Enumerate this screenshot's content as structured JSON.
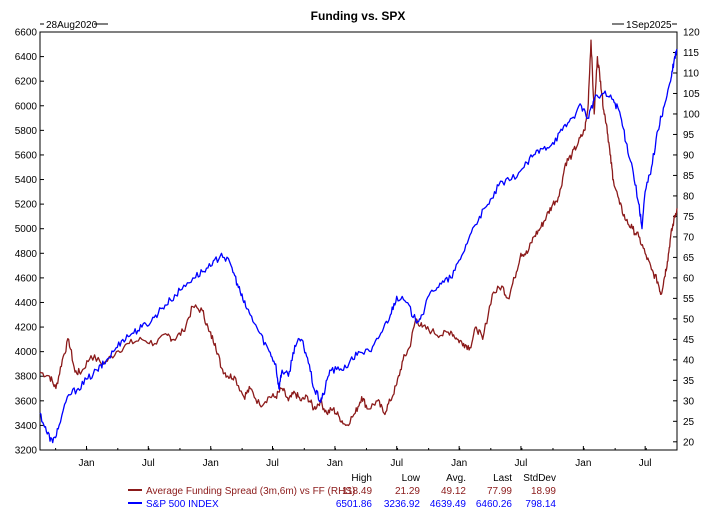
{
  "chart_data": {
    "type": "line",
    "title": "Funding vs. SPX",
    "start_date": "28Aug2020",
    "end_date": "1Sep2025",
    "x_tick_labels": [
      "Jan",
      "Jul",
      "Jan",
      "Jul",
      "Jan",
      "Jul",
      "Jan",
      "Jul",
      "Jan",
      "Jul"
    ],
    "x_tick_fracs": [
      0.073,
      0.17,
      0.268,
      0.365,
      0.463,
      0.56,
      0.658,
      0.755,
      0.853,
      0.95
    ],
    "left_axis": {
      "min": 3200,
      "max": 6600,
      "ticks": [
        "3200",
        "3400",
        "3600",
        "3800",
        "4000",
        "4200",
        "4400",
        "4600",
        "4800",
        "5000",
        "5200",
        "5400",
        "5600",
        "5800",
        "6000",
        "6200",
        "6400",
        "6600"
      ]
    },
    "right_axis": {
      "min": 18,
      "max": 120,
      "ticks": [
        "20",
        "25",
        "30",
        "35",
        "40",
        "45",
        "50",
        "55",
        "60",
        "65",
        "70",
        "75",
        "80",
        "85",
        "90",
        "95",
        "100",
        "105",
        "110",
        "115",
        "120"
      ]
    },
    "legend_headers": [
      "High",
      "Low",
      "Avg.",
      "Last",
      "StdDev"
    ],
    "series": [
      {
        "name": "Average Funding Spread (3m,6m) vs FF (RHS)",
        "axis": "right",
        "color": "#8b1a1a",
        "stats": [
          "118.49",
          "21.29",
          "49.12",
          "77.99",
          "18.99"
        ],
        "points": [
          [
            0.0,
            37
          ],
          [
            0.015,
            36
          ],
          [
            0.025,
            33
          ],
          [
            0.035,
            40
          ],
          [
            0.045,
            45
          ],
          [
            0.055,
            37
          ],
          [
            0.065,
            37
          ],
          [
            0.08,
            41
          ],
          [
            0.1,
            39
          ],
          [
            0.12,
            42
          ],
          [
            0.14,
            44
          ],
          [
            0.16,
            45
          ],
          [
            0.18,
            44
          ],
          [
            0.2,
            46
          ],
          [
            0.21,
            45
          ],
          [
            0.225,
            47
          ],
          [
            0.24,
            53
          ],
          [
            0.255,
            52
          ],
          [
            0.265,
            47
          ],
          [
            0.275,
            44
          ],
          [
            0.285,
            38
          ],
          [
            0.295,
            36
          ],
          [
            0.305,
            36
          ],
          [
            0.32,
            31
          ],
          [
            0.33,
            33
          ],
          [
            0.345,
            29
          ],
          [
            0.36,
            31
          ],
          [
            0.37,
            31
          ],
          [
            0.38,
            33
          ],
          [
            0.39,
            30
          ],
          [
            0.4,
            32
          ],
          [
            0.41,
            30
          ],
          [
            0.42,
            31
          ],
          [
            0.43,
            28
          ],
          [
            0.44,
            30
          ],
          [
            0.45,
            27
          ],
          [
            0.46,
            28
          ],
          [
            0.47,
            26
          ],
          [
            0.48,
            24
          ],
          [
            0.495,
            27
          ],
          [
            0.505,
            31
          ],
          [
            0.515,
            28
          ],
          [
            0.53,
            30
          ],
          [
            0.54,
            27
          ],
          [
            0.55,
            30
          ],
          [
            0.56,
            34
          ],
          [
            0.57,
            40
          ],
          [
            0.58,
            43
          ],
          [
            0.59,
            50
          ],
          [
            0.6,
            48
          ],
          [
            0.615,
            47
          ],
          [
            0.63,
            46
          ],
          [
            0.645,
            47
          ],
          [
            0.655,
            45
          ],
          [
            0.665,
            44
          ],
          [
            0.675,
            43
          ],
          [
            0.685,
            48
          ],
          [
            0.695,
            45
          ],
          [
            0.71,
            56
          ],
          [
            0.725,
            58
          ],
          [
            0.735,
            55
          ],
          [
            0.745,
            60
          ],
          [
            0.755,
            66
          ],
          [
            0.765,
            66
          ],
          [
            0.775,
            70
          ],
          [
            0.785,
            72
          ],
          [
            0.795,
            75
          ],
          [
            0.805,
            78
          ],
          [
            0.815,
            80
          ],
          [
            0.825,
            88
          ],
          [
            0.835,
            90
          ],
          [
            0.845,
            93
          ],
          [
            0.855,
            96
          ],
          [
            0.86,
            101
          ],
          [
            0.865,
            118
          ],
          [
            0.87,
            100
          ],
          [
            0.875,
            114
          ],
          [
            0.88,
            108
          ],
          [
            0.885,
            101
          ],
          [
            0.89,
            97
          ],
          [
            0.895,
            90
          ],
          [
            0.9,
            84
          ],
          [
            0.91,
            78
          ],
          [
            0.92,
            74
          ],
          [
            0.93,
            72
          ],
          [
            0.94,
            70
          ],
          [
            0.95,
            66
          ],
          [
            0.96,
            62
          ],
          [
            0.97,
            59
          ],
          [
            0.975,
            56
          ],
          [
            0.98,
            60
          ],
          [
            0.985,
            64
          ],
          [
            0.99,
            70
          ],
          [
            0.995,
            74
          ],
          [
            1.0,
            77
          ]
        ]
      },
      {
        "name": "S&P 500 INDEX",
        "axis": "left",
        "color": "#0000ff",
        "stats": [
          "6501.86",
          "3236.92",
          "4639.49",
          "6460.26",
          "798.14"
        ],
        "points": [
          [
            0.0,
            3500
          ],
          [
            0.01,
            3350
          ],
          [
            0.02,
            3260
          ],
          [
            0.03,
            3400
          ],
          [
            0.045,
            3650
          ],
          [
            0.06,
            3700
          ],
          [
            0.075,
            3780
          ],
          [
            0.09,
            3850
          ],
          [
            0.1,
            3900
          ],
          [
            0.115,
            4000
          ],
          [
            0.13,
            4100
          ],
          [
            0.145,
            4150
          ],
          [
            0.16,
            4200
          ],
          [
            0.175,
            4250
          ],
          [
            0.19,
            4350
          ],
          [
            0.205,
            4420
          ],
          [
            0.22,
            4500
          ],
          [
            0.24,
            4600
          ],
          [
            0.255,
            4650
          ],
          [
            0.27,
            4700
          ],
          [
            0.285,
            4800
          ],
          [
            0.3,
            4700
          ],
          [
            0.31,
            4550
          ],
          [
            0.32,
            4400
          ],
          [
            0.33,
            4300
          ],
          [
            0.345,
            4150
          ],
          [
            0.36,
            4000
          ],
          [
            0.37,
            3900
          ],
          [
            0.375,
            3700
          ],
          [
            0.38,
            3850
          ],
          [
            0.39,
            3800
          ],
          [
            0.4,
            4050
          ],
          [
            0.41,
            4100
          ],
          [
            0.42,
            3950
          ],
          [
            0.43,
            3700
          ],
          [
            0.44,
            3600
          ],
          [
            0.445,
            3650
          ],
          [
            0.455,
            3850
          ],
          [
            0.47,
            3850
          ],
          [
            0.485,
            3900
          ],
          [
            0.5,
            4000
          ],
          [
            0.52,
            4000
          ],
          [
            0.535,
            4150
          ],
          [
            0.55,
            4300
          ],
          [
            0.56,
            4450
          ],
          [
            0.575,
            4400
          ],
          [
            0.59,
            4250
          ],
          [
            0.6,
            4300
          ],
          [
            0.615,
            4500
          ],
          [
            0.63,
            4550
          ],
          [
            0.645,
            4600
          ],
          [
            0.66,
            4750
          ],
          [
            0.675,
            4950
          ],
          [
            0.69,
            5100
          ],
          [
            0.705,
            5200
          ],
          [
            0.72,
            5350
          ],
          [
            0.74,
            5400
          ],
          [
            0.76,
            5500
          ],
          [
            0.775,
            5600
          ],
          [
            0.79,
            5650
          ],
          [
            0.805,
            5700
          ],
          [
            0.82,
            5800
          ],
          [
            0.835,
            5900
          ],
          [
            0.85,
            6000
          ],
          [
            0.86,
            5900
          ],
          [
            0.87,
            6050
          ],
          [
            0.885,
            6100
          ],
          [
            0.9,
            6050
          ],
          [
            0.91,
            5950
          ],
          [
            0.92,
            5700
          ],
          [
            0.93,
            5500
          ],
          [
            0.94,
            5200
          ],
          [
            0.945,
            5000
          ],
          [
            0.95,
            5300
          ],
          [
            0.96,
            5500
          ],
          [
            0.97,
            5800
          ],
          [
            0.98,
            6000
          ],
          [
            0.99,
            6200
          ],
          [
            0.995,
            6350
          ],
          [
            1.0,
            6460
          ]
        ]
      }
    ]
  }
}
